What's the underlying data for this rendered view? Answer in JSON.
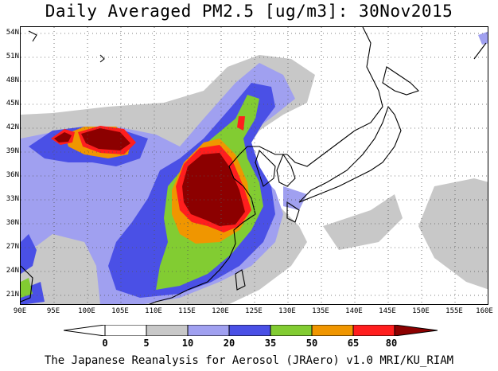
{
  "title": "Daily Averaged PM2.5 [ug/m3]: 30Nov2015",
  "footer": "The Japanese Reanalysis for Aerosol (JRAero) v1.0 MRI/KU_RIAM",
  "lat_labels": [
    "54N",
    "51N",
    "48N",
    "45N",
    "42N",
    "39N",
    "36N",
    "33N",
    "30N",
    "27N",
    "24N",
    "21N"
  ],
  "lon_labels": [
    "90E",
    "95E",
    "100E",
    "105E",
    "110E",
    "115E",
    "120E",
    "125E",
    "130E",
    "135E",
    "140E",
    "145E",
    "150E",
    "155E",
    "160E"
  ],
  "colorbar": {
    "labels": [
      "0",
      "5",
      "10",
      "20",
      "35",
      "50",
      "65",
      "80"
    ],
    "colors": [
      "#ffffff",
      "#c8c8c8",
      "#a0a0f0",
      "#4a50e6",
      "#82cc32",
      "#f09600",
      "#ff1e1e",
      "#8c0000"
    ]
  }
}
